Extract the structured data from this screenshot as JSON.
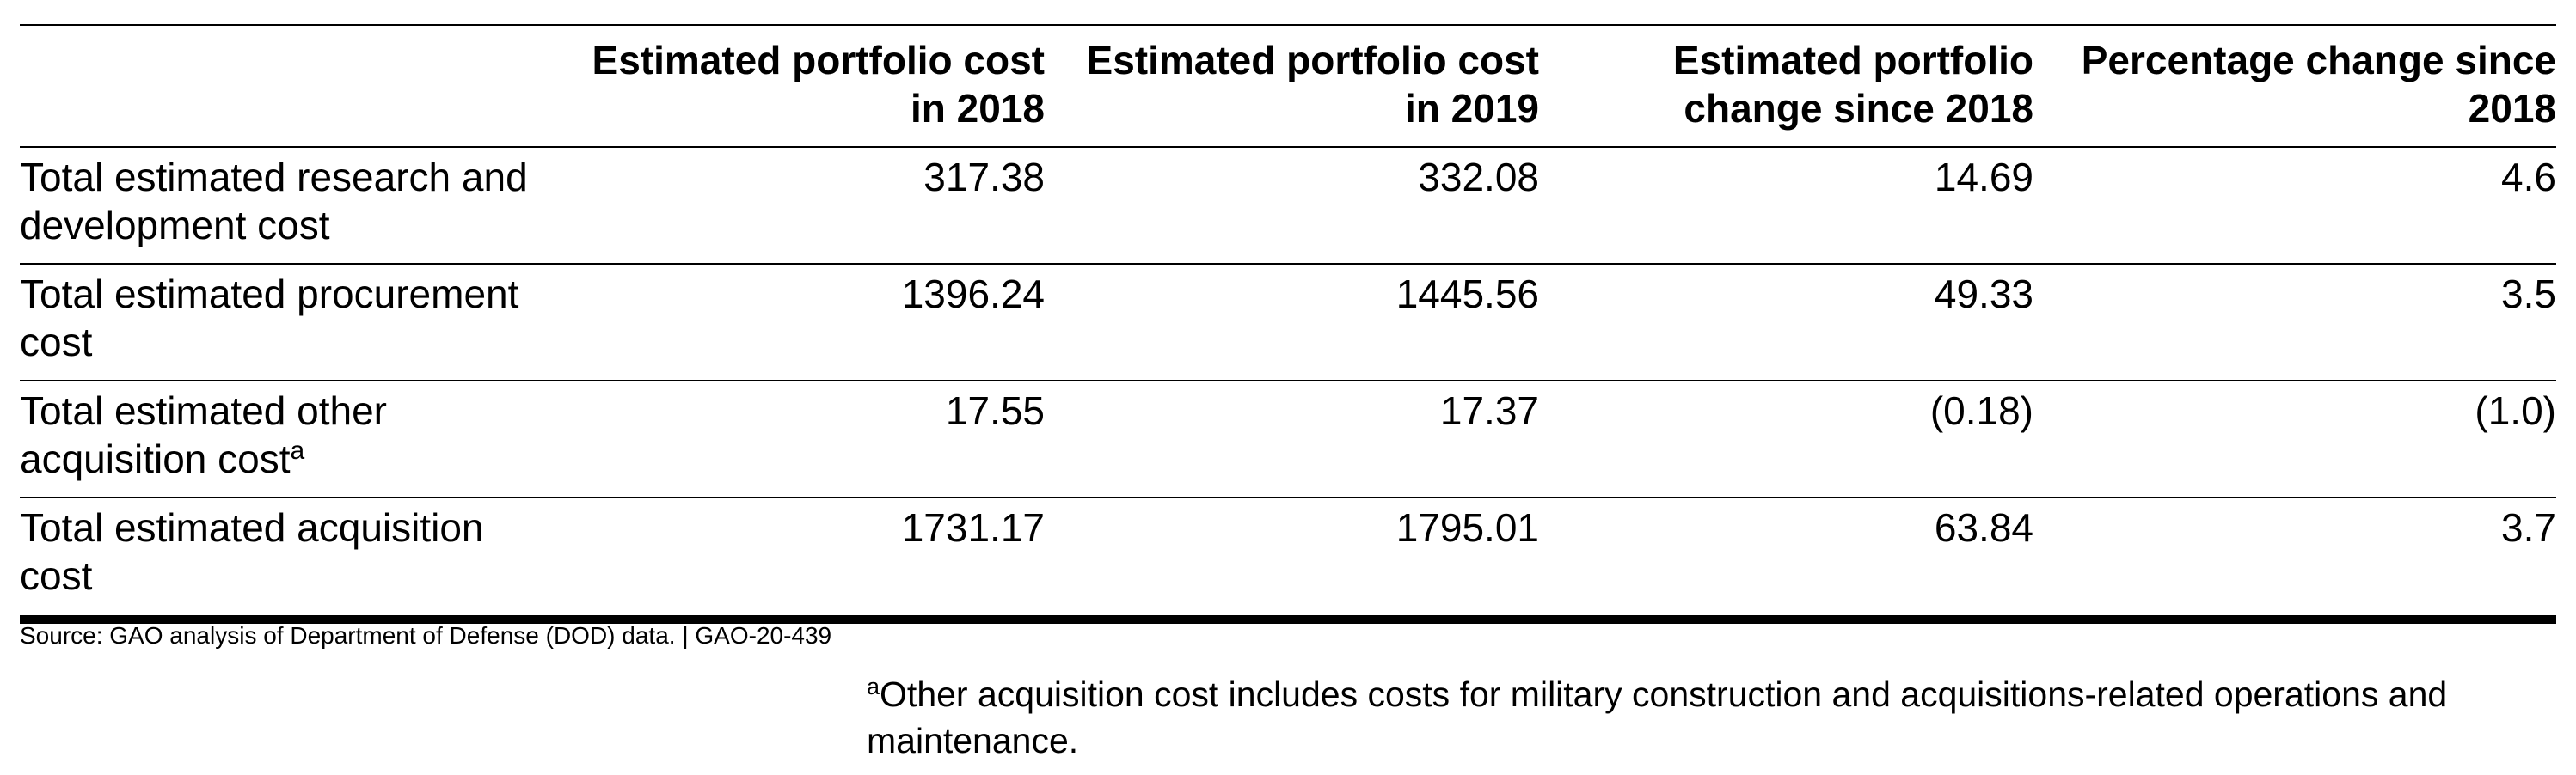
{
  "table": {
    "headers": [
      "",
      "Estimated portfolio cost in 2018",
      "Estimated portfolio cost in 2019",
      "Estimated portfolio change since 2018",
      "Percentage change since 2018"
    ],
    "rows": [
      {
        "label": "Total estimated research and development cost",
        "footnote_marker": "",
        "values": [
          "317.38",
          "332.08",
          "14.69",
          "4.6"
        ]
      },
      {
        "label": "Total estimated procurement cost",
        "footnote_marker": "",
        "values": [
          "1396.24",
          "1445.56",
          "49.33",
          "3.5"
        ]
      },
      {
        "label": "Total estimated other acquisition cost",
        "footnote_marker": "a",
        "values": [
          "17.55",
          "17.37",
          "(0.18)",
          "(1.0)"
        ]
      },
      {
        "label": "Total estimated acquisition cost",
        "footnote_marker": "",
        "values": [
          "1731.17",
          "1795.01",
          "63.84",
          "3.7"
        ]
      }
    ]
  },
  "source": "Source: GAO analysis of Department of Defense (DOD) data. | GAO-20-439",
  "footnote": {
    "marker": "a",
    "text": "Other acquisition cost includes costs for military construction and acquisitions-related operations and maintenance."
  }
}
